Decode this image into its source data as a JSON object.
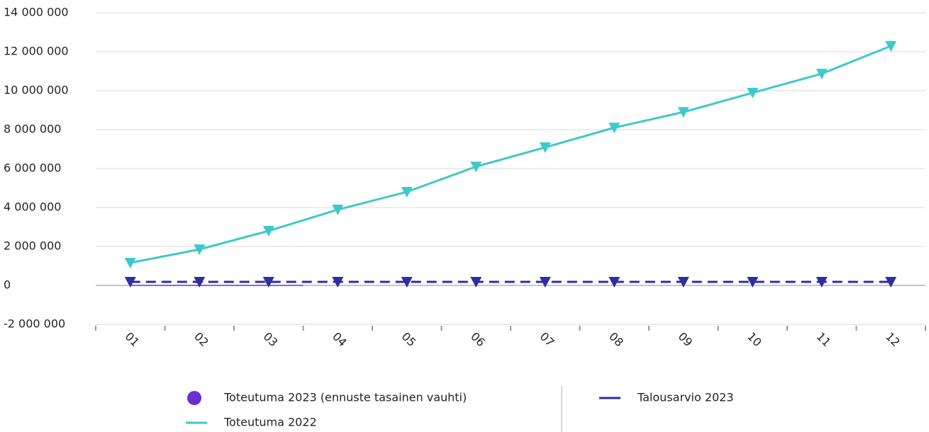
{
  "chart_data": {
    "type": "line",
    "categories": [
      "01",
      "02",
      "03",
      "04",
      "05",
      "06",
      "07",
      "08",
      "09",
      "10",
      "11",
      "12"
    ],
    "series": [
      {
        "name": "Toteutuma 2023 (ennuste tasainen vauhti)",
        "color": "#6a2fd0",
        "marker": "circle",
        "values": [
          0,
          0,
          0,
          null,
          null,
          null,
          null,
          null,
          null,
          null,
          null,
          null
        ]
      },
      {
        "name": "Toteutuma 2022",
        "color": "#3ec9c9",
        "marker": "triangle-down",
        "values": [
          1160000,
          1850000,
          2800000,
          3890000,
          4800000,
          6100000,
          7090000,
          8100000,
          8900000,
          9890000,
          10870000,
          12290000
        ]
      },
      {
        "name": "Talousarvio 2023",
        "color": "#2b2fa0",
        "marker": "triangle-down",
        "dashed": true,
        "values": [
          180000,
          180000,
          180000,
          180000,
          180000,
          180000,
          180000,
          180000,
          180000,
          180000,
          180000,
          180000
        ]
      }
    ],
    "ylim": [
      -2000000,
      14000000
    ],
    "yticks": [
      {
        "value": -2000000,
        "label": "-2 000 000"
      },
      0,
      {
        "value": 2000000,
        "label": "2 000 000"
      },
      {
        "value": 4000000,
        "label": "4 000 000"
      },
      {
        "value": 6000000,
        "label": "6 000 000"
      },
      {
        "value": 8000000,
        "label": "8 000 000"
      },
      {
        "value": 10000000,
        "label": "10 000 000"
      },
      {
        "value": 12000000,
        "label": "12 000 000"
      },
      {
        "value": 14000000,
        "label": "14 000 000"
      }
    ],
    "grid": true
  }
}
